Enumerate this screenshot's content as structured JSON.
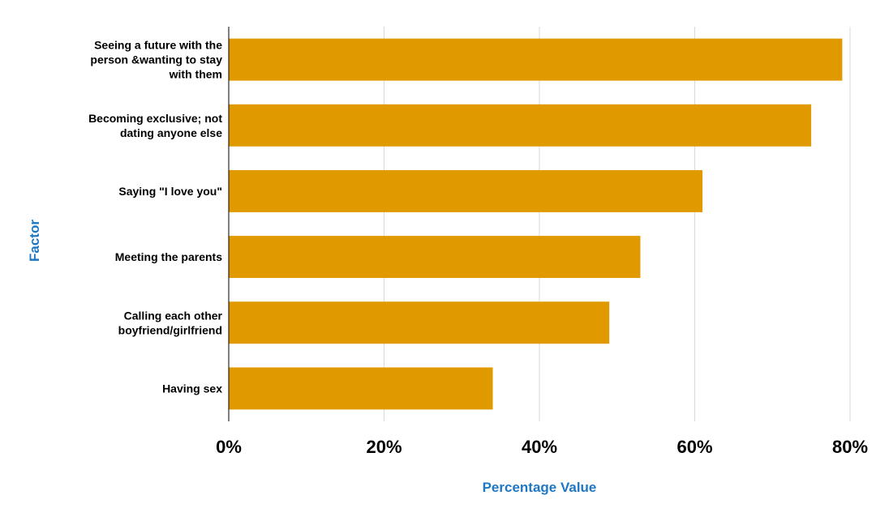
{
  "chart_data": {
    "type": "bar",
    "orientation": "horizontal",
    "categories": [
      [
        "Seeing a future with the",
        "person &wanting to stay",
        "with them"
      ],
      [
        "Becoming exclusive; not",
        "dating anyone else"
      ],
      [
        "Saying \"I love you\""
      ],
      [
        "Meeting the parents"
      ],
      [
        "Calling each other",
        "boyfriend/girlfriend"
      ],
      [
        "Having sex"
      ]
    ],
    "values": [
      79,
      75,
      61,
      53,
      49,
      34
    ],
    "xlabel": "Percentage Value",
    "ylabel": "Factor",
    "xlim": [
      0,
      80
    ],
    "xticks": [
      0,
      20,
      40,
      60,
      80
    ],
    "xtick_labels": [
      "0%",
      "20%",
      "40%",
      "60%",
      "80%"
    ],
    "grid": "vertical",
    "bar_color": "#E09A00",
    "axis_title_color": "#1F77C4"
  }
}
